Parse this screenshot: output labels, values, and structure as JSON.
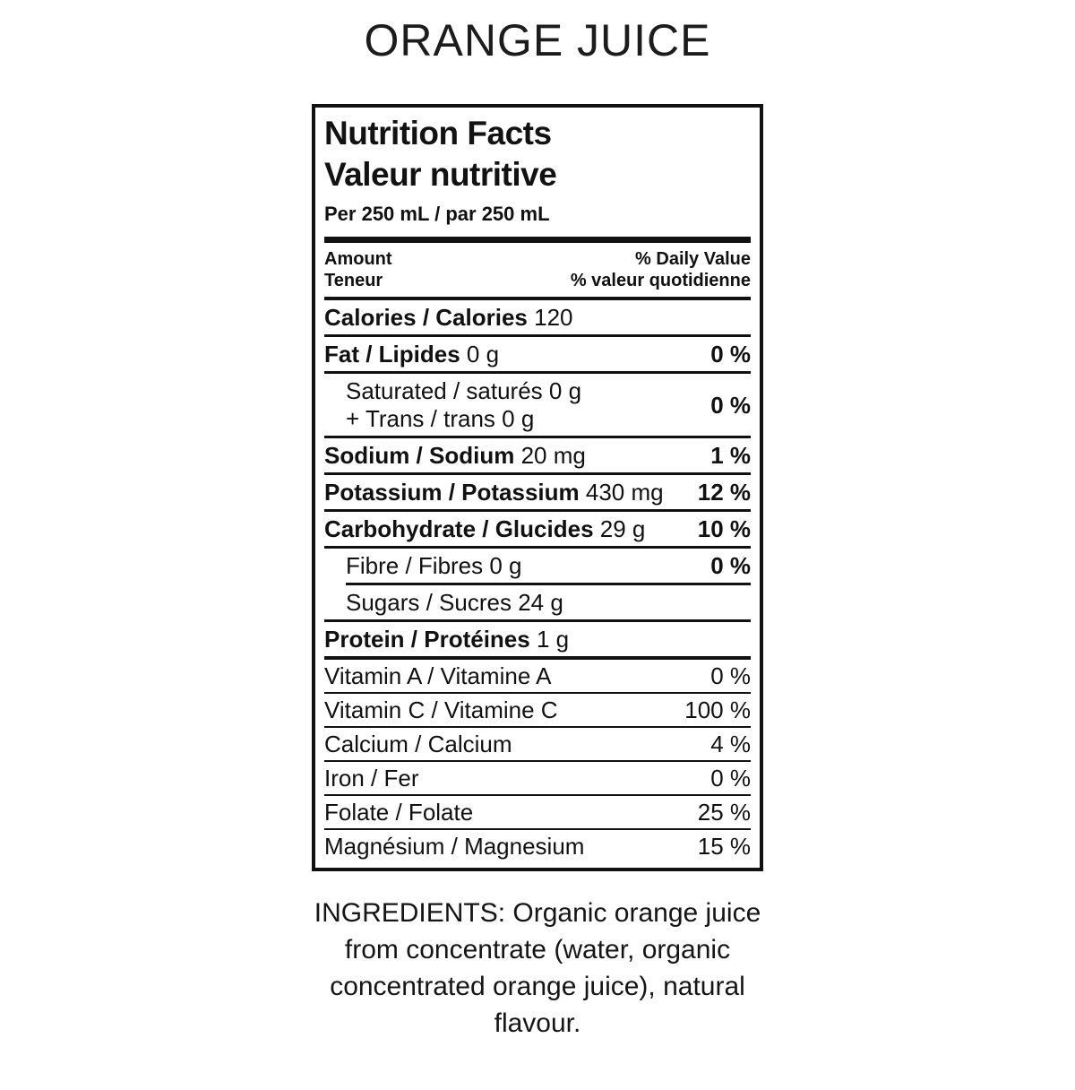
{
  "page": {
    "title": "ORANGE JUICE"
  },
  "label": {
    "title_en": "Nutrition Facts",
    "title_fr": "Valeur nutritive",
    "serving": "Per 250 mL / par 250 mL",
    "amount_en": "Amount",
    "amount_fr": "Teneur",
    "dv_en": "% Daily Value",
    "dv_fr": "% valeur quotidienne",
    "rows": [
      {
        "bold": "Calories / Calories",
        "rest": " 120",
        "pct": ""
      },
      {
        "bold": "Fat / Lipides",
        "rest": " 0 g",
        "pct": "0 %"
      },
      {
        "line1": "Saturated / saturés 0 g",
        "line2": "+ Trans / trans 0 g",
        "pct": "0 %"
      },
      {
        "bold": "Sodium / Sodium",
        "rest": " 20 mg",
        "pct": "1 %"
      },
      {
        "bold": "Potassium / Potassium",
        "rest": " 430 mg",
        "pct": "12 %"
      },
      {
        "bold": "Carbohydrate / Glucides",
        "rest": " 29 g",
        "pct": "10 %"
      },
      {
        "rest": "Fibre / Fibres 0 g",
        "pct": "0 %"
      },
      {
        "rest": "Sugars / Sucres 24 g",
        "pct": ""
      },
      {
        "bold": "Protein / Protéines",
        "rest": " 1 g",
        "pct": ""
      },
      {
        "rest": "Vitamin A / Vitamine A",
        "pct": "0 %"
      },
      {
        "rest": "Vitamin C / Vitamine C",
        "pct": "100 %"
      },
      {
        "rest": "Calcium / Calcium",
        "pct": "4 %"
      },
      {
        "rest": "Iron / Fer",
        "pct": "0 %"
      },
      {
        "rest": "Folate / Folate",
        "pct": "25 %"
      },
      {
        "rest": "Magnésium / Magnesium",
        "pct": "15 %"
      }
    ]
  },
  "ingredients": {
    "lines": [
      "INGREDIENTS: Organic orange juice",
      "from concentrate (water, organic",
      "concentrated orange juice), natural",
      "flavour."
    ]
  },
  "colors": {
    "text": "#111111",
    "background": "#ffffff"
  }
}
